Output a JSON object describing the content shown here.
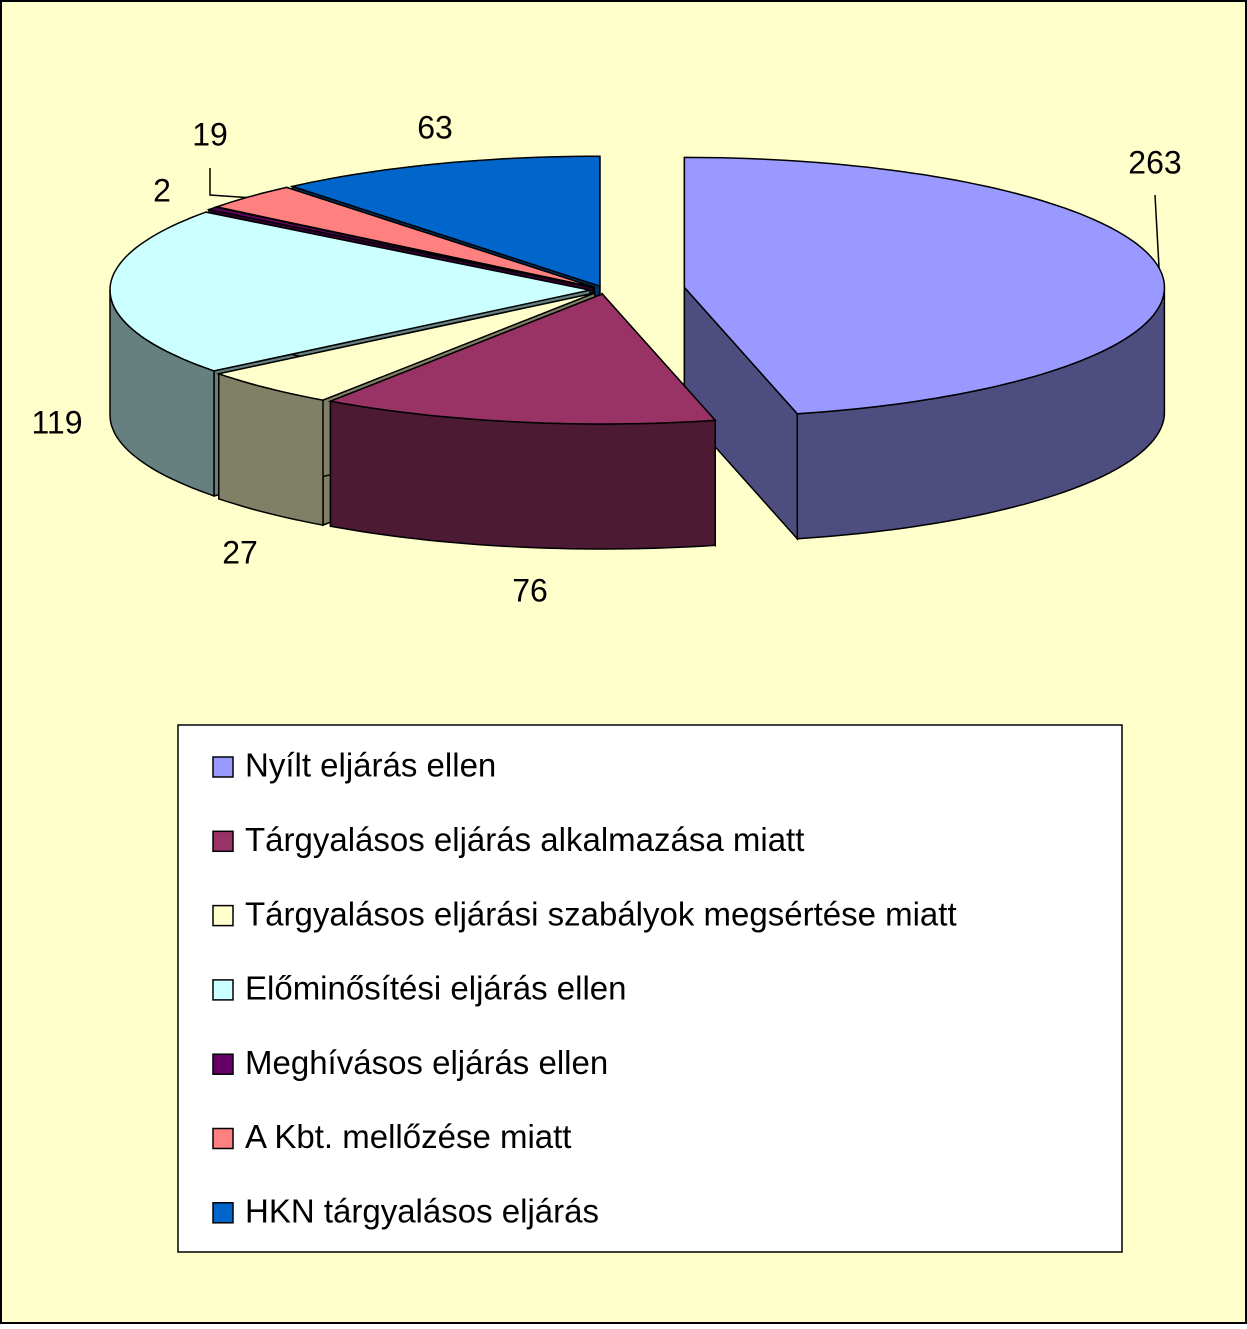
{
  "chart_data": {
    "type": "pie3d",
    "categories": [
      "Nyílt eljárás ellen",
      "Tárgyalásos eljárás alkalmazása miatt",
      "Tárgyalásos eljárási szabályok megsértése miatt",
      "Előminősítési eljárás ellen",
      "Meghívásos eljárás ellen",
      "A Kbt. mellőzése miatt",
      "HKN tárgyalásos eljárás"
    ],
    "values": [
      263,
      76,
      27,
      119,
      2,
      19,
      63
    ],
    "colors": [
      "#9999ff",
      "#993366",
      "#ffffcc",
      "#ccffff",
      "#660066",
      "#ff8080",
      "#0066cc"
    ],
    "legend": "bottom"
  }
}
